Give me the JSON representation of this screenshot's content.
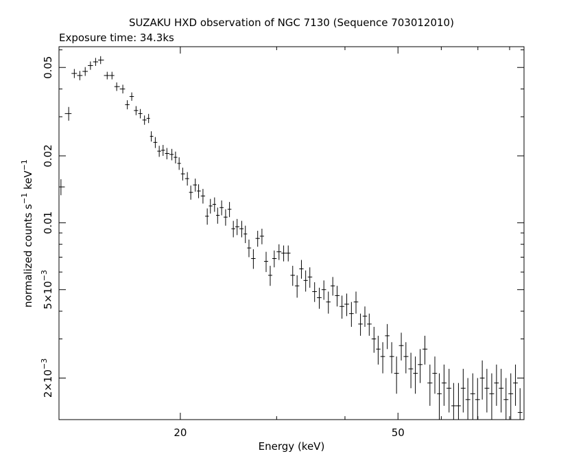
{
  "chart_data": {
    "type": "scatter",
    "title": "SUZAKU HXD observation of NGC 7130 (Sequence 703012010)",
    "subtitle": "Exposure time: 34.3ks",
    "xlabel": "Energy (keV)",
    "ylabel": "normalized counts s",
    "ylabel_sup1": "−1",
    "ylabel_mid": " keV",
    "ylabel_sup2": "−1",
    "xscale": "log",
    "yscale": "log",
    "xlim": [
      12,
      85
    ],
    "ylim": [
      0.0013,
      0.062
    ],
    "grid": false,
    "x_tick_labels": [
      {
        "value": 20,
        "label": "20"
      },
      {
        "value": 50,
        "label": "50"
      }
    ],
    "y_tick_labels": [
      {
        "value": 0.05,
        "label": "0.05"
      },
      {
        "value": 0.02,
        "label": "0.02"
      },
      {
        "value": 0.01,
        "label": "0.01"
      },
      {
        "value": 0.005,
        "base": "5×10",
        "exp": "−3"
      },
      {
        "value": 0.002,
        "base": "2×10",
        "exp": "−3"
      }
    ],
    "series": [
      {
        "x": [
          12.1,
          12.5,
          12.8,
          13.1,
          13.4,
          13.7,
          14.0,
          14.3,
          14.7,
          15.0,
          15.3,
          15.7,
          16.0,
          16.3,
          16.6,
          16.9,
          17.2,
          17.5,
          17.7,
          18.0,
          18.3,
          18.6,
          18.9,
          19.3,
          19.6,
          19.9,
          20.2,
          20.6,
          20.9,
          21.3,
          21.6,
          22.0,
          22.4,
          22.7,
          23.1,
          23.4,
          23.8,
          24.2,
          24.6,
          25.0,
          25.4,
          25.9,
          26.3,
          26.7,
          27.2,
          27.7,
          28.2,
          28.7,
          29.2,
          29.7,
          30.3,
          30.9,
          31.5,
          32.1,
          32.7,
          33.3,
          33.9,
          34.5,
          35.2,
          35.9,
          36.6,
          37.3,
          38.0,
          38.7,
          39.5,
          40.3,
          41.1,
          41.9,
          42.7,
          43.5,
          44.3,
          45.2,
          46.0,
          46.9,
          47.8,
          48.7,
          49.7,
          50.7,
          51.7,
          52.8,
          53.8,
          54.9,
          56.0,
          57.2,
          58.4,
          59.5,
          60.7,
          62.0,
          63.2,
          64.5,
          65.8,
          67.1,
          68.5,
          69.9,
          71.3,
          72.7,
          74.2,
          75.7,
          77.2,
          78.8,
          80.4,
          82.0,
          83.6
        ],
        "y": [
          0.0145,
          0.031,
          0.047,
          0.046,
          0.048,
          0.051,
          0.053,
          0.054,
          0.046,
          0.046,
          0.041,
          0.04,
          0.034,
          0.037,
          0.032,
          0.031,
          0.029,
          0.0295,
          0.0245,
          0.023,
          0.021,
          0.0212,
          0.0205,
          0.0203,
          0.0197,
          0.0185,
          0.0166,
          0.0158,
          0.0137,
          0.0148,
          0.0139,
          0.0132,
          0.0107,
          0.0119,
          0.0121,
          0.0108,
          0.0117,
          0.0106,
          0.0115,
          0.0094,
          0.0096,
          0.0094,
          0.0089,
          0.0077,
          0.0069,
          0.0085,
          0.0087,
          0.0067,
          0.0058,
          0.0069,
          0.0074,
          0.0073,
          0.0073,
          0.0058,
          0.0052,
          0.0062,
          0.0055,
          0.0057,
          0.0049,
          0.0046,
          0.005,
          0.0044,
          0.0052,
          0.0047,
          0.0042,
          0.0043,
          0.0039,
          0.0044,
          0.0035,
          0.0038,
          0.0035,
          0.003,
          0.0027,
          0.0025,
          0.0031,
          0.0025,
          0.0021,
          0.0028,
          0.0025,
          0.0022,
          0.0021,
          0.0023,
          0.0027,
          0.0019,
          0.0021,
          0.0017,
          0.0019,
          0.0018,
          0.0015,
          0.0015,
          0.0018,
          0.0016,
          0.0017,
          0.0016,
          0.002,
          0.0018,
          0.0017,
          0.0019,
          0.0018,
          0.0016,
          0.0017,
          0.0019,
          0.0014
        ],
        "yerr": [
          0.0012,
          0.0022,
          0.0022,
          0.0022,
          0.0022,
          0.0022,
          0.0022,
          0.0022,
          0.0018,
          0.0018,
          0.0018,
          0.0018,
          0.0016,
          0.0016,
          0.0015,
          0.0015,
          0.0014,
          0.0014,
          0.0013,
          0.0013,
          0.0012,
          0.0012,
          0.0012,
          0.0012,
          0.0012,
          0.0012,
          0.0011,
          0.0011,
          0.001,
          0.001,
          0.001,
          0.001,
          0.0009,
          0.0009,
          0.0009,
          0.0009,
          0.0009,
          0.0009,
          0.0009,
          0.0008,
          0.0008,
          0.0008,
          0.0008,
          0.0007,
          0.0007,
          0.0007,
          0.0007,
          0.0007,
          0.0006,
          0.0006,
          0.0006,
          0.0006,
          0.0006,
          0.0006,
          0.0006,
          0.0006,
          0.0006,
          0.0006,
          0.0005,
          0.0005,
          0.0005,
          0.0005,
          0.0005,
          0.0005,
          0.0005,
          0.0005,
          0.0005,
          0.0005,
          0.0004,
          0.0004,
          0.0004,
          0.0004,
          0.0004,
          0.0004,
          0.0004,
          0.0004,
          0.0004,
          0.0004,
          0.0004,
          0.0004,
          0.0004,
          0.0004,
          0.0004,
          0.0004,
          0.0004,
          0.0004,
          0.0004,
          0.0004,
          0.0004,
          0.0004,
          0.0004,
          0.0004,
          0.0004,
          0.0004,
          0.0004,
          0.0004,
          0.0004,
          0.0004,
          0.0004,
          0.0004,
          0.0004,
          0.0004,
          0.0004
        ]
      }
    ]
  }
}
